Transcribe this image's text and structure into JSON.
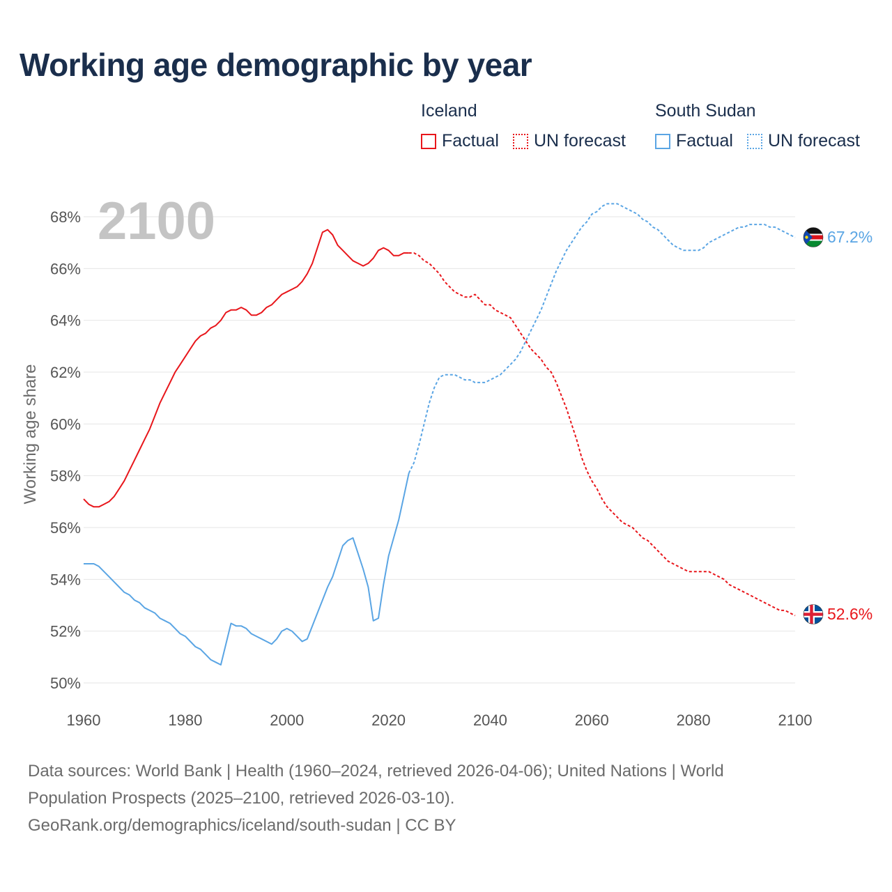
{
  "title": "Working age demographic by year",
  "year_watermark": "2100",
  "legend": {
    "groups": [
      {
        "name": "Iceland",
        "color": "#e8161b",
        "factual_label": "Factual",
        "forecast_label": "UN forecast"
      },
      {
        "name": "South Sudan",
        "color": "#5aa5e4",
        "factual_label": "Factual",
        "forecast_label": "UN forecast"
      }
    ]
  },
  "end_labels": {
    "iceland": "52.6%",
    "south_sudan": "67.2%"
  },
  "sources": {
    "line1": "Data sources: World Bank | Health (1960–2024, retrieved 2026-04-06); United Nations | World",
    "line2": "Population Prospects (2025–2100, retrieved 2026-03-10).",
    "line3": "GeoRank.org/demographics/iceland/south-sudan | CC BY"
  },
  "chart_data": {
    "type": "line",
    "title": "Working age demographic by year",
    "ylabel": "Working age share",
    "xlabel": "",
    "xlim": [
      1960,
      2100
    ],
    "ylim": [
      49.5,
      69
    ],
    "x_ticks": [
      1960,
      1980,
      2000,
      2020,
      2040,
      2060,
      2080,
      2100
    ],
    "x_tick_labels": [
      "1960",
      "1980",
      "2000",
      "2020",
      "2040",
      "2060",
      "2080",
      "2100"
    ],
    "y_ticks": [
      50,
      52,
      54,
      56,
      58,
      60,
      62,
      64,
      66,
      68
    ],
    "y_tick_labels": [
      "50%",
      "52%",
      "54%",
      "56%",
      "58%",
      "60%",
      "62%",
      "64%",
      "66%",
      "68%"
    ],
    "grid": true,
    "series": [
      {
        "name": "Iceland",
        "color": "#e8161b",
        "factual": [
          [
            1960,
            57.1
          ],
          [
            1961,
            56.9
          ],
          [
            1962,
            56.8
          ],
          [
            1963,
            56.8
          ],
          [
            1964,
            56.9
          ],
          [
            1965,
            57.0
          ],
          [
            1966,
            57.2
          ],
          [
            1967,
            57.5
          ],
          [
            1968,
            57.8
          ],
          [
            1969,
            58.2
          ],
          [
            1970,
            58.6
          ],
          [
            1971,
            59.0
          ],
          [
            1972,
            59.4
          ],
          [
            1973,
            59.8
          ],
          [
            1974,
            60.3
          ],
          [
            1975,
            60.8
          ],
          [
            1976,
            61.2
          ],
          [
            1977,
            61.6
          ],
          [
            1978,
            62.0
          ],
          [
            1979,
            62.3
          ],
          [
            1980,
            62.6
          ],
          [
            1981,
            62.9
          ],
          [
            1982,
            63.2
          ],
          [
            1983,
            63.4
          ],
          [
            1984,
            63.5
          ],
          [
            1985,
            63.7
          ],
          [
            1986,
            63.8
          ],
          [
            1987,
            64.0
          ],
          [
            1988,
            64.3
          ],
          [
            1989,
            64.4
          ],
          [
            1990,
            64.4
          ],
          [
            1991,
            64.5
          ],
          [
            1992,
            64.4
          ],
          [
            1993,
            64.2
          ],
          [
            1994,
            64.2
          ],
          [
            1995,
            64.3
          ],
          [
            1996,
            64.5
          ],
          [
            1997,
            64.6
          ],
          [
            1998,
            64.8
          ],
          [
            1999,
            65.0
          ],
          [
            2000,
            65.1
          ],
          [
            2001,
            65.2
          ],
          [
            2002,
            65.3
          ],
          [
            2003,
            65.5
          ],
          [
            2004,
            65.8
          ],
          [
            2005,
            66.2
          ],
          [
            2006,
            66.8
          ],
          [
            2007,
            67.4
          ],
          [
            2008,
            67.5
          ],
          [
            2009,
            67.3
          ],
          [
            2010,
            66.9
          ],
          [
            2011,
            66.7
          ],
          [
            2012,
            66.5
          ],
          [
            2013,
            66.3
          ],
          [
            2014,
            66.2
          ],
          [
            2015,
            66.1
          ],
          [
            2016,
            66.2
          ],
          [
            2017,
            66.4
          ],
          [
            2018,
            66.7
          ],
          [
            2019,
            66.8
          ],
          [
            2020,
            66.7
          ],
          [
            2021,
            66.5
          ],
          [
            2022,
            66.5
          ],
          [
            2023,
            66.6
          ],
          [
            2024,
            66.6
          ]
        ],
        "forecast": [
          [
            2024,
            66.6
          ],
          [
            2025,
            66.6
          ],
          [
            2026,
            66.5
          ],
          [
            2027,
            66.3
          ],
          [
            2028,
            66.2
          ],
          [
            2029,
            66.0
          ],
          [
            2030,
            65.8
          ],
          [
            2031,
            65.5
          ],
          [
            2032,
            65.3
          ],
          [
            2033,
            65.1
          ],
          [
            2034,
            65.0
          ],
          [
            2035,
            64.9
          ],
          [
            2036,
            64.9
          ],
          [
            2037,
            65.0
          ],
          [
            2038,
            64.8
          ],
          [
            2039,
            64.6
          ],
          [
            2040,
            64.6
          ],
          [
            2041,
            64.4
          ],
          [
            2042,
            64.3
          ],
          [
            2043,
            64.2
          ],
          [
            2044,
            64.1
          ],
          [
            2045,
            63.8
          ],
          [
            2046,
            63.5
          ],
          [
            2047,
            63.2
          ],
          [
            2048,
            62.9
          ],
          [
            2049,
            62.7
          ],
          [
            2050,
            62.5
          ],
          [
            2051,
            62.2
          ],
          [
            2052,
            62.0
          ],
          [
            2053,
            61.6
          ],
          [
            2054,
            61.1
          ],
          [
            2055,
            60.6
          ],
          [
            2056,
            60.0
          ],
          [
            2057,
            59.4
          ],
          [
            2058,
            58.7
          ],
          [
            2059,
            58.2
          ],
          [
            2060,
            57.8
          ],
          [
            2061,
            57.5
          ],
          [
            2062,
            57.1
          ],
          [
            2063,
            56.8
          ],
          [
            2064,
            56.6
          ],
          [
            2065,
            56.4
          ],
          [
            2066,
            56.2
          ],
          [
            2067,
            56.1
          ],
          [
            2068,
            56.0
          ],
          [
            2069,
            55.8
          ],
          [
            2070,
            55.6
          ],
          [
            2071,
            55.5
          ],
          [
            2072,
            55.3
          ],
          [
            2073,
            55.1
          ],
          [
            2074,
            54.9
          ],
          [
            2075,
            54.7
          ],
          [
            2076,
            54.6
          ],
          [
            2077,
            54.5
          ],
          [
            2078,
            54.4
          ],
          [
            2079,
            54.3
          ],
          [
            2080,
            54.3
          ],
          [
            2081,
            54.3
          ],
          [
            2082,
            54.3
          ],
          [
            2083,
            54.3
          ],
          [
            2084,
            54.2
          ],
          [
            2085,
            54.1
          ],
          [
            2086,
            54.0
          ],
          [
            2087,
            53.8
          ],
          [
            2088,
            53.7
          ],
          [
            2089,
            53.6
          ],
          [
            2090,
            53.5
          ],
          [
            2091,
            53.4
          ],
          [
            2092,
            53.3
          ],
          [
            2093,
            53.2
          ],
          [
            2094,
            53.1
          ],
          [
            2095,
            53.0
          ],
          [
            2096,
            52.9
          ],
          [
            2097,
            52.8
          ],
          [
            2098,
            52.8
          ],
          [
            2099,
            52.7
          ],
          [
            2100,
            52.6
          ]
        ]
      },
      {
        "name": "South Sudan",
        "color": "#5aa5e4",
        "factual": [
          [
            1960,
            54.6
          ],
          [
            1961,
            54.6
          ],
          [
            1962,
            54.6
          ],
          [
            1963,
            54.5
          ],
          [
            1964,
            54.3
          ],
          [
            1965,
            54.1
          ],
          [
            1966,
            53.9
          ],
          [
            1967,
            53.7
          ],
          [
            1968,
            53.5
          ],
          [
            1969,
            53.4
          ],
          [
            1970,
            53.2
          ],
          [
            1971,
            53.1
          ],
          [
            1972,
            52.9
          ],
          [
            1973,
            52.8
          ],
          [
            1974,
            52.7
          ],
          [
            1975,
            52.5
          ],
          [
            1976,
            52.4
          ],
          [
            1977,
            52.3
          ],
          [
            1978,
            52.1
          ],
          [
            1979,
            51.9
          ],
          [
            1980,
            51.8
          ],
          [
            1981,
            51.6
          ],
          [
            1982,
            51.4
          ],
          [
            1983,
            51.3
          ],
          [
            1984,
            51.1
          ],
          [
            1985,
            50.9
          ],
          [
            1986,
            50.8
          ],
          [
            1987,
            50.7
          ],
          [
            1988,
            51.5
          ],
          [
            1989,
            52.3
          ],
          [
            1990,
            52.2
          ],
          [
            1991,
            52.2
          ],
          [
            1992,
            52.1
          ],
          [
            1993,
            51.9
          ],
          [
            1994,
            51.8
          ],
          [
            1995,
            51.7
          ],
          [
            1996,
            51.6
          ],
          [
            1997,
            51.5
          ],
          [
            1998,
            51.7
          ],
          [
            1999,
            52.0
          ],
          [
            2000,
            52.1
          ],
          [
            2001,
            52.0
          ],
          [
            2002,
            51.8
          ],
          [
            2003,
            51.6
          ],
          [
            2004,
            51.7
          ],
          [
            2005,
            52.2
          ],
          [
            2006,
            52.7
          ],
          [
            2007,
            53.2
          ],
          [
            2008,
            53.7
          ],
          [
            2009,
            54.1
          ],
          [
            2010,
            54.7
          ],
          [
            2011,
            55.3
          ],
          [
            2012,
            55.5
          ],
          [
            2013,
            55.6
          ],
          [
            2014,
            55.0
          ],
          [
            2015,
            54.4
          ],
          [
            2016,
            53.7
          ],
          [
            2017,
            52.4
          ],
          [
            2018,
            52.5
          ],
          [
            2019,
            53.8
          ],
          [
            2020,
            54.9
          ],
          [
            2021,
            55.6
          ],
          [
            2022,
            56.3
          ],
          [
            2023,
            57.2
          ],
          [
            2024,
            58.1
          ]
        ],
        "forecast": [
          [
            2024,
            58.1
          ],
          [
            2025,
            58.5
          ],
          [
            2026,
            59.2
          ],
          [
            2027,
            60.0
          ],
          [
            2028,
            60.8
          ],
          [
            2029,
            61.4
          ],
          [
            2030,
            61.8
          ],
          [
            2031,
            61.9
          ],
          [
            2032,
            61.9
          ],
          [
            2033,
            61.9
          ],
          [
            2034,
            61.8
          ],
          [
            2035,
            61.7
          ],
          [
            2036,
            61.7
          ],
          [
            2037,
            61.6
          ],
          [
            2038,
            61.6
          ],
          [
            2039,
            61.6
          ],
          [
            2040,
            61.7
          ],
          [
            2041,
            61.8
          ],
          [
            2042,
            61.9
          ],
          [
            2043,
            62.1
          ],
          [
            2044,
            62.3
          ],
          [
            2045,
            62.5
          ],
          [
            2046,
            62.8
          ],
          [
            2047,
            63.2
          ],
          [
            2048,
            63.6
          ],
          [
            2049,
            64.0
          ],
          [
            2050,
            64.4
          ],
          [
            2051,
            64.9
          ],
          [
            2052,
            65.4
          ],
          [
            2053,
            65.9
          ],
          [
            2054,
            66.3
          ],
          [
            2055,
            66.7
          ],
          [
            2056,
            67.0
          ],
          [
            2057,
            67.3
          ],
          [
            2058,
            67.6
          ],
          [
            2059,
            67.8
          ],
          [
            2060,
            68.1
          ],
          [
            2061,
            68.2
          ],
          [
            2062,
            68.4
          ],
          [
            2063,
            68.5
          ],
          [
            2064,
            68.5
          ],
          [
            2065,
            68.5
          ],
          [
            2066,
            68.4
          ],
          [
            2067,
            68.3
          ],
          [
            2068,
            68.2
          ],
          [
            2069,
            68.1
          ],
          [
            2070,
            67.9
          ],
          [
            2071,
            67.8
          ],
          [
            2072,
            67.6
          ],
          [
            2073,
            67.5
          ],
          [
            2074,
            67.3
          ],
          [
            2075,
            67.1
          ],
          [
            2076,
            66.9
          ],
          [
            2077,
            66.8
          ],
          [
            2078,
            66.7
          ],
          [
            2079,
            66.7
          ],
          [
            2080,
            66.7
          ],
          [
            2081,
            66.7
          ],
          [
            2082,
            66.8
          ],
          [
            2083,
            67.0
          ],
          [
            2084,
            67.1
          ],
          [
            2085,
            67.2
          ],
          [
            2086,
            67.3
          ],
          [
            2087,
            67.4
          ],
          [
            2088,
            67.5
          ],
          [
            2089,
            67.6
          ],
          [
            2090,
            67.6
          ],
          [
            2091,
            67.7
          ],
          [
            2092,
            67.7
          ],
          [
            2093,
            67.7
          ],
          [
            2094,
            67.7
          ],
          [
            2095,
            67.6
          ],
          [
            2096,
            67.6
          ],
          [
            2097,
            67.5
          ],
          [
            2098,
            67.4
          ],
          [
            2099,
            67.3
          ],
          [
            2100,
            67.2
          ]
        ]
      }
    ]
  }
}
